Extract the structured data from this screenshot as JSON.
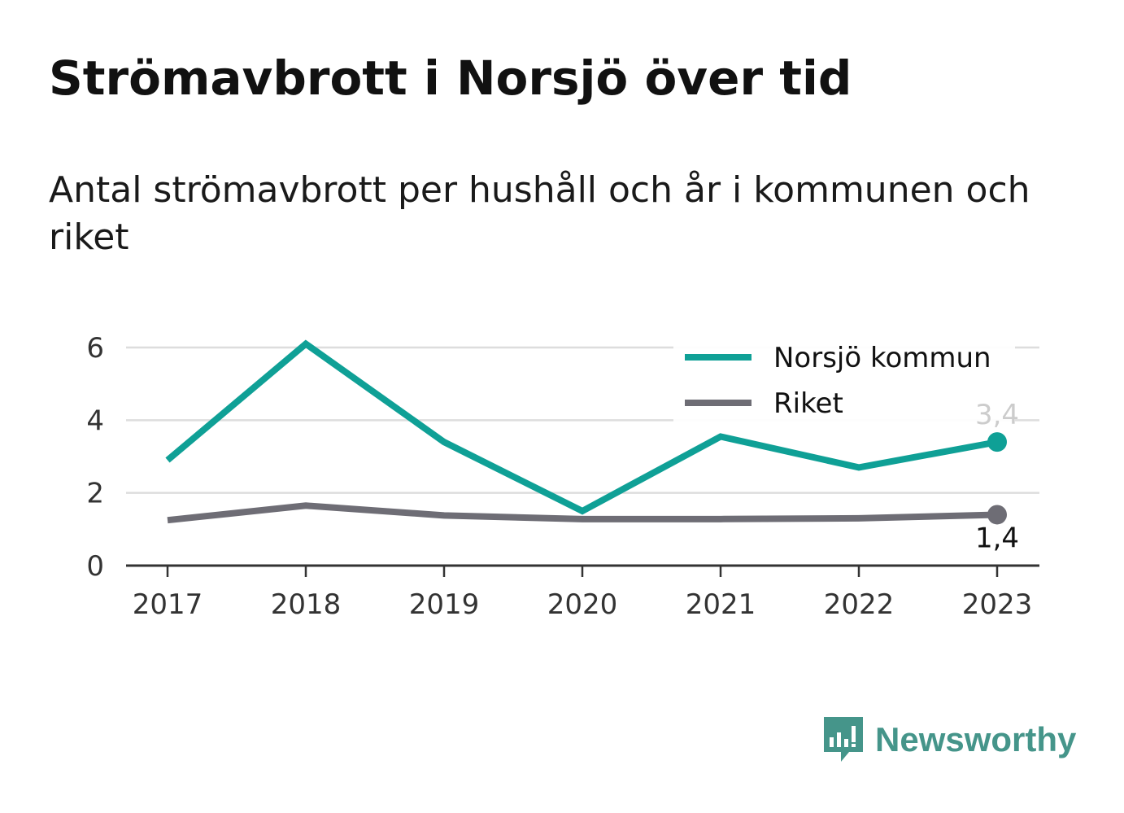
{
  "title": "Strömavbrott i Norsjö över tid",
  "subtitle": "Antal strömavbrott per hushåll och år i kommunen och riket",
  "brand": {
    "name": "Newsworthy",
    "logo_icon": "bar-chart-speech-bubble-icon",
    "color": "#45958a"
  },
  "chart_data": {
    "type": "line",
    "x": [
      "2017",
      "2018",
      "2019",
      "2020",
      "2021",
      "2022",
      "2023"
    ],
    "yticks": [
      "0",
      "2",
      "4",
      "6"
    ],
    "ylim": [
      0,
      6
    ],
    "grid": true,
    "legend": "top-right",
    "series": [
      {
        "name": "Norsjö kommun",
        "color": "#0fa096",
        "values": [
          2.9,
          6.1,
          3.4,
          1.5,
          3.55,
          2.7,
          3.4
        ],
        "end_label": "3,4"
      },
      {
        "name": "Riket",
        "color": "#6e6d75",
        "values": [
          1.25,
          1.65,
          1.38,
          1.28,
          1.28,
          1.3,
          1.4
        ],
        "end_label": "1,4"
      }
    ]
  }
}
